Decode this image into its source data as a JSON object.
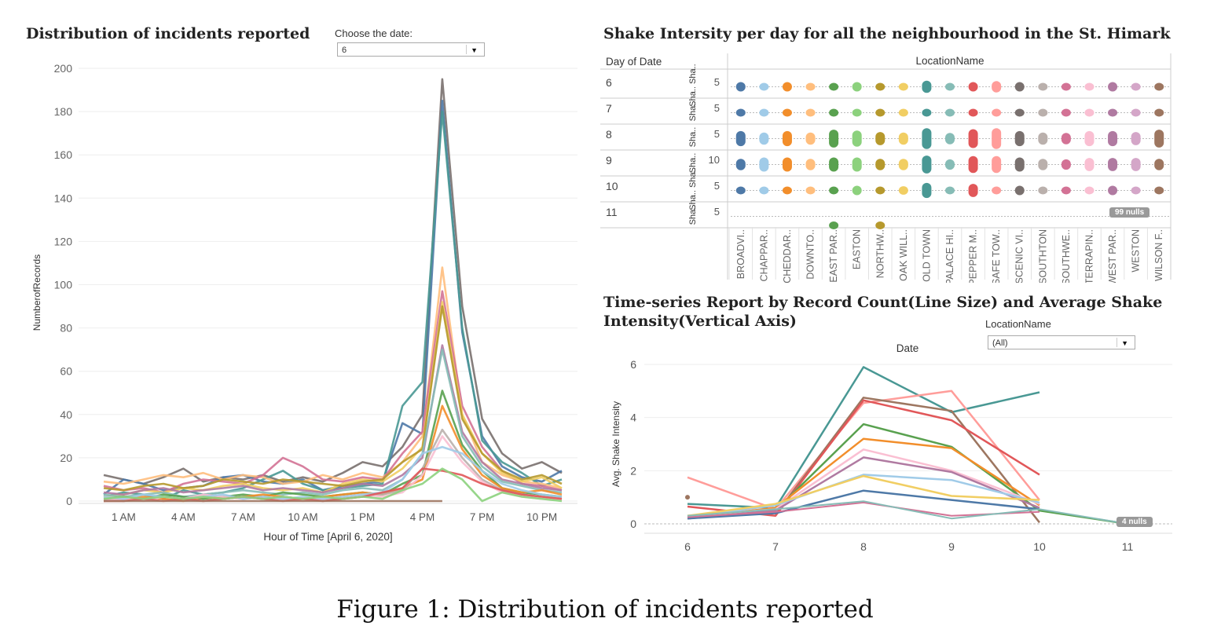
{
  "caption": "Figure 1: Distribution of incidents reported",
  "left_panel": {
    "title": "Distribution of incidents reported",
    "filter_label": "Choose the date:",
    "filter_value": "6"
  },
  "heatmap_panel": {
    "title": "Shake Intersity per day for all the neighbourhood in the St. Himark",
    "row_header": "Day of Date",
    "col_header": "LocationName",
    "nulls_badge": "99 nulls"
  },
  "ts_panel": {
    "title_line1": "Time-series Report by Record Count(Line Size) and Average Shake",
    "title_line2": "Intensity(Vertical Axis)",
    "filter_label": "LocationName",
    "filter_value": "(All)",
    "nulls_badge": "4 nulls"
  },
  "colors": [
    "#4e79a7",
    "#a0cbe8",
    "#f28e2b",
    "#ffbe7d",
    "#59a14f",
    "#8cd17d",
    "#b6992d",
    "#f1ce63",
    "#499894",
    "#86bcb6",
    "#e15759",
    "#ff9d9a",
    "#79706e",
    "#bab0ac",
    "#d37295",
    "#fabfd2",
    "#b07aa1",
    "#d4a6c8",
    "#9d7660"
  ],
  "chart_data": [
    {
      "type": "line",
      "title": "Distribution of incidents reported",
      "xlabel": "Hour of Time [April 6, 2020]",
      "ylabel": "NumberofRecords",
      "ylim": [
        0,
        200
      ],
      "y_ticks": [
        0,
        20,
        40,
        60,
        80,
        100,
        120,
        140,
        160,
        180,
        200
      ],
      "x": [
        0,
        1,
        2,
        3,
        4,
        5,
        6,
        7,
        8,
        9,
        10,
        11,
        12,
        13,
        14,
        15,
        16,
        17,
        18,
        19,
        20,
        21,
        22,
        23
      ],
      "x_ticks": [
        {
          "x": 1,
          "label": "1 AM"
        },
        {
          "x": 4,
          "label": "4 AM"
        },
        {
          "x": 7,
          "label": "7 AM"
        },
        {
          "x": 10,
          "label": "10 AM"
        },
        {
          "x": 13,
          "label": "1 PM"
        },
        {
          "x": 16,
          "label": "4 PM"
        },
        {
          "x": 19,
          "label": "7 PM"
        },
        {
          "x": 22,
          "label": "10 PM"
        }
      ],
      "grid": true,
      "series": [
        {
          "color": "#79706e",
          "values": [
            12,
            10,
            8,
            11,
            15,
            9,
            11,
            10,
            12,
            9,
            11,
            9,
            13,
            18,
            16,
            25,
            40,
            195,
            90,
            38,
            22,
            15,
            18,
            13
          ]
        },
        {
          "color": "#4e79a7",
          "values": [
            3,
            10,
            8,
            5,
            6,
            7,
            11,
            12,
            9,
            8,
            10,
            5,
            7,
            8,
            9,
            36,
            31,
            185,
            78,
            30,
            16,
            11,
            9,
            14
          ]
        },
        {
          "color": "#499894",
          "values": [
            2,
            4,
            3,
            1,
            5,
            3,
            4,
            6,
            10,
            14,
            8,
            5,
            6,
            7,
            8,
            44,
            55,
            180,
            80,
            28,
            18,
            13,
            7,
            10
          ]
        },
        {
          "color": "#ffbe7d",
          "values": [
            9,
            8,
            10,
            12,
            11,
            13,
            10,
            12,
            11,
            8,
            9,
            12,
            10,
            13,
            11,
            18,
            30,
            108,
            40,
            18,
            12,
            9,
            8,
            6
          ]
        },
        {
          "color": "#d37295",
          "values": [
            7,
            5,
            6,
            4,
            8,
            10,
            9,
            8,
            12,
            20,
            16,
            10,
            9,
            11,
            10,
            22,
            32,
            97,
            44,
            25,
            14,
            8,
            7,
            5
          ]
        },
        {
          "color": "#f1ce63",
          "values": [
            2,
            3,
            5,
            4,
            6,
            5,
            7,
            8,
            6,
            5,
            6,
            4,
            8,
            10,
            9,
            15,
            25,
            92,
            40,
            22,
            13,
            9,
            11,
            6
          ]
        },
        {
          "color": "#b6992d",
          "values": [
            6,
            5,
            7,
            8,
            6,
            7,
            10,
            9,
            8,
            10,
            9,
            8,
            7,
            9,
            10,
            18,
            24,
            90,
            38,
            22,
            14,
            10,
            12,
            8
          ]
        },
        {
          "color": "#b07aa1",
          "values": [
            4,
            3,
            5,
            6,
            4,
            5,
            6,
            7,
            5,
            6,
            5,
            4,
            6,
            8,
            7,
            12,
            20,
            72,
            32,
            18,
            10,
            8,
            6,
            5
          ]
        },
        {
          "color": "#86bcb6",
          "values": [
            3,
            2,
            3,
            4,
            2,
            3,
            4,
            5,
            4,
            3,
            4,
            3,
            5,
            6,
            5,
            10,
            22,
            70,
            30,
            16,
            9,
            7,
            5,
            4
          ]
        },
        {
          "color": "#59a14f",
          "values": [
            1,
            2,
            1,
            3,
            2,
            1,
            2,
            3,
            2,
            4,
            3,
            2,
            3,
            4,
            3,
            8,
            12,
            51,
            26,
            14,
            6,
            4,
            3,
            2
          ]
        },
        {
          "color": "#f28e2b",
          "values": [
            0,
            1,
            2,
            1,
            0,
            2,
            1,
            2,
            3,
            2,
            1,
            2,
            3,
            4,
            3,
            6,
            10,
            44,
            24,
            12,
            6,
            4,
            5,
            3
          ]
        },
        {
          "color": "#bab0ac",
          "values": [
            1,
            0,
            1,
            2,
            1,
            0,
            1,
            2,
            1,
            2,
            1,
            0,
            1,
            2,
            3,
            5,
            15,
            33,
            20,
            10,
            5,
            3,
            2,
            1
          ]
        },
        {
          "color": "#fabfd2",
          "values": [
            0,
            1,
            0,
            2,
            1,
            3,
            2,
            1,
            2,
            1,
            0,
            1,
            2,
            3,
            2,
            4,
            12,
            30,
            18,
            9,
            4,
            2,
            1,
            1
          ]
        },
        {
          "color": "#a0cbe8",
          "values": [
            2,
            1,
            3,
            2,
            1,
            2,
            3,
            1,
            2,
            1,
            2,
            1,
            2,
            3,
            4,
            10,
            22,
            25,
            22,
            14,
            8,
            5,
            3,
            2
          ]
        },
        {
          "color": "#e15759",
          "values": [
            0,
            0,
            1,
            0,
            1,
            0,
            1,
            2,
            1,
            0,
            1,
            0,
            1,
            2,
            4,
            6,
            15,
            14,
            12,
            8,
            5,
            3,
            2,
            1
          ]
        },
        {
          "color": "#8cd17d",
          "values": [
            1,
            2,
            1,
            2,
            1,
            2,
            1,
            2,
            1,
            2,
            1,
            2,
            1,
            2,
            1,
            5,
            8,
            15,
            10,
            0,
            4,
            2,
            1,
            0
          ]
        },
        {
          "color": "#9d7660",
          "values": [
            0,
            0,
            0,
            0,
            0,
            0,
            0,
            0,
            0,
            0,
            0,
            0,
            0,
            0,
            0,
            0,
            0,
            0,
            null,
            null,
            null,
            null,
            null,
            null
          ]
        }
      ]
    },
    {
      "type": "heatmap",
      "title": "Shake Intersity per day for all the neighbourhood in the St. Himark",
      "rows": [
        {
          "day": "6",
          "axis_label": "Sha.. Sha..",
          "axis_value": "5"
        },
        {
          "day": "7",
          "axis_label": "Sha..",
          "axis_value": "5"
        },
        {
          "day": "8",
          "axis_label": "Sha..",
          "axis_value": "5"
        },
        {
          "day": "9",
          "axis_label": "Sha..",
          "axis_value": "10"
        },
        {
          "day": "10",
          "axis_label": "Sha.. Sha..",
          "axis_value": "5"
        },
        {
          "day": "11",
          "axis_label": "Sha..",
          "axis_value": "5"
        }
      ],
      "columns": [
        "BROADVI..",
        "CHAPPAR..",
        "CHEDDAR..",
        "DOWNTO..",
        "EAST PAR..",
        "EASTON",
        "NORTHW..",
        "OAK WILL..",
        "OLD TOWN",
        "PALACE HI..",
        "PEPPER M..",
        "SAFE TOW..",
        "SCENIC VI..",
        "SOUTHTON",
        "SOUTHWE..",
        "TERRAPIN..",
        "WEST PAR..",
        "WESTON",
        "WILSON F.."
      ],
      "mark_lengths": [
        [
          1,
          0.6,
          1,
          0.7,
          0.8,
          1,
          0.8,
          0.8,
          1.3,
          0.7,
          1,
          1.2,
          1,
          0.7,
          0.8,
          0.8,
          1,
          0.7,
          0.7
        ],
        [
          0.8,
          0.8,
          0.8,
          0.8,
          0.8,
          0.8,
          0.8,
          0.8,
          0.8,
          0.8,
          0.8,
          0.8,
          0.8,
          0.8,
          0.8,
          0.8,
          0.8,
          0.8,
          0.7
        ],
        [
          1.6,
          1.3,
          1.6,
          1.3,
          1.9,
          1.7,
          1.4,
          1.3,
          2.2,
          1.2,
          2.0,
          2.2,
          1.6,
          1.3,
          1.2,
          1.6,
          1.6,
          1.4,
          1.9
        ],
        [
          1.2,
          1.5,
          1.5,
          1.2,
          1.5,
          1.5,
          1.2,
          1.2,
          1.9,
          1.1,
          1.8,
          1.8,
          1.5,
          1.2,
          1.1,
          1.4,
          1.4,
          1.4,
          1.2
        ],
        [
          0.8,
          0.8,
          0.8,
          0.8,
          0.8,
          1.0,
          0.8,
          0.9,
          1.6,
          0.8,
          1.4,
          0.8,
          1.0,
          0.8,
          0.8,
          0.8,
          1.0,
          0.8,
          0.7
        ],
        [
          0,
          0,
          0,
          0,
          0.6,
          0,
          0.6,
          0,
          0,
          0,
          0,
          0,
          0,
          0,
          0,
          0,
          0,
          0,
          0
        ]
      ]
    },
    {
      "type": "line",
      "title": "Time-series Report by Record Count(Line Size) and Average Shake Intensity(Vertical Axis)",
      "xlabel": "Date",
      "ylabel": "Avg. Shake Intensity",
      "ylim": [
        0,
        6
      ],
      "y_ticks": [
        0,
        2,
        4,
        6
      ],
      "x": [
        6,
        7,
        8,
        9,
        10,
        11
      ],
      "grid": true,
      "series": [
        {
          "color": "#499894",
          "width": 2.5,
          "values": [
            0.75,
            0.6,
            5.9,
            4.2,
            4.95,
            null
          ]
        },
        {
          "color": "#ff9d9a",
          "width": 2.5,
          "values": [
            1.75,
            0.55,
            4.55,
            5.0,
            0.9,
            null
          ]
        },
        {
          "color": "#9d7660",
          "width": 2.5,
          "values": [
            null,
            0.35,
            4.75,
            4.25,
            0.05,
            null
          ]
        },
        {
          "color": "#e15759",
          "width": 2.5,
          "values": [
            0.65,
            0.3,
            4.65,
            3.9,
            1.85,
            null
          ]
        },
        {
          "color": "#59a14f",
          "width": 2.5,
          "values": [
            0.3,
            0.5,
            3.75,
            2.9,
            0.5,
            0.0
          ]
        },
        {
          "color": "#f28e2b",
          "width": 2.5,
          "values": [
            0.25,
            0.6,
            3.2,
            2.85,
            0.7,
            null
          ]
        },
        {
          "color": "#fabfd2",
          "width": 2.5,
          "values": [
            0.3,
            0.55,
            2.8,
            2.0,
            0.75,
            null
          ]
        },
        {
          "color": "#b07aa1",
          "width": 2.5,
          "values": [
            0.2,
            0.5,
            2.5,
            1.95,
            0.6,
            null
          ]
        },
        {
          "color": "#a0cbe8",
          "width": 2.5,
          "values": [
            0.25,
            0.7,
            1.85,
            1.65,
            0.8,
            null
          ]
        },
        {
          "color": "#f1ce63",
          "width": 2.5,
          "values": [
            0.3,
            0.75,
            1.8,
            1.05,
            0.9,
            null
          ]
        },
        {
          "color": "#4e79a7",
          "width": 2.5,
          "values": [
            0.2,
            0.4,
            1.25,
            0.9,
            0.55,
            null
          ]
        },
        {
          "color": "#d37295",
          "width": 2,
          "values": [
            0.25,
            0.45,
            0.8,
            0.3,
            0.45,
            null
          ]
        },
        {
          "color": "#86bcb6",
          "width": 2,
          "values": [
            0.3,
            0.55,
            0.85,
            0.2,
            0.55,
            0.0
          ]
        }
      ]
    }
  ]
}
